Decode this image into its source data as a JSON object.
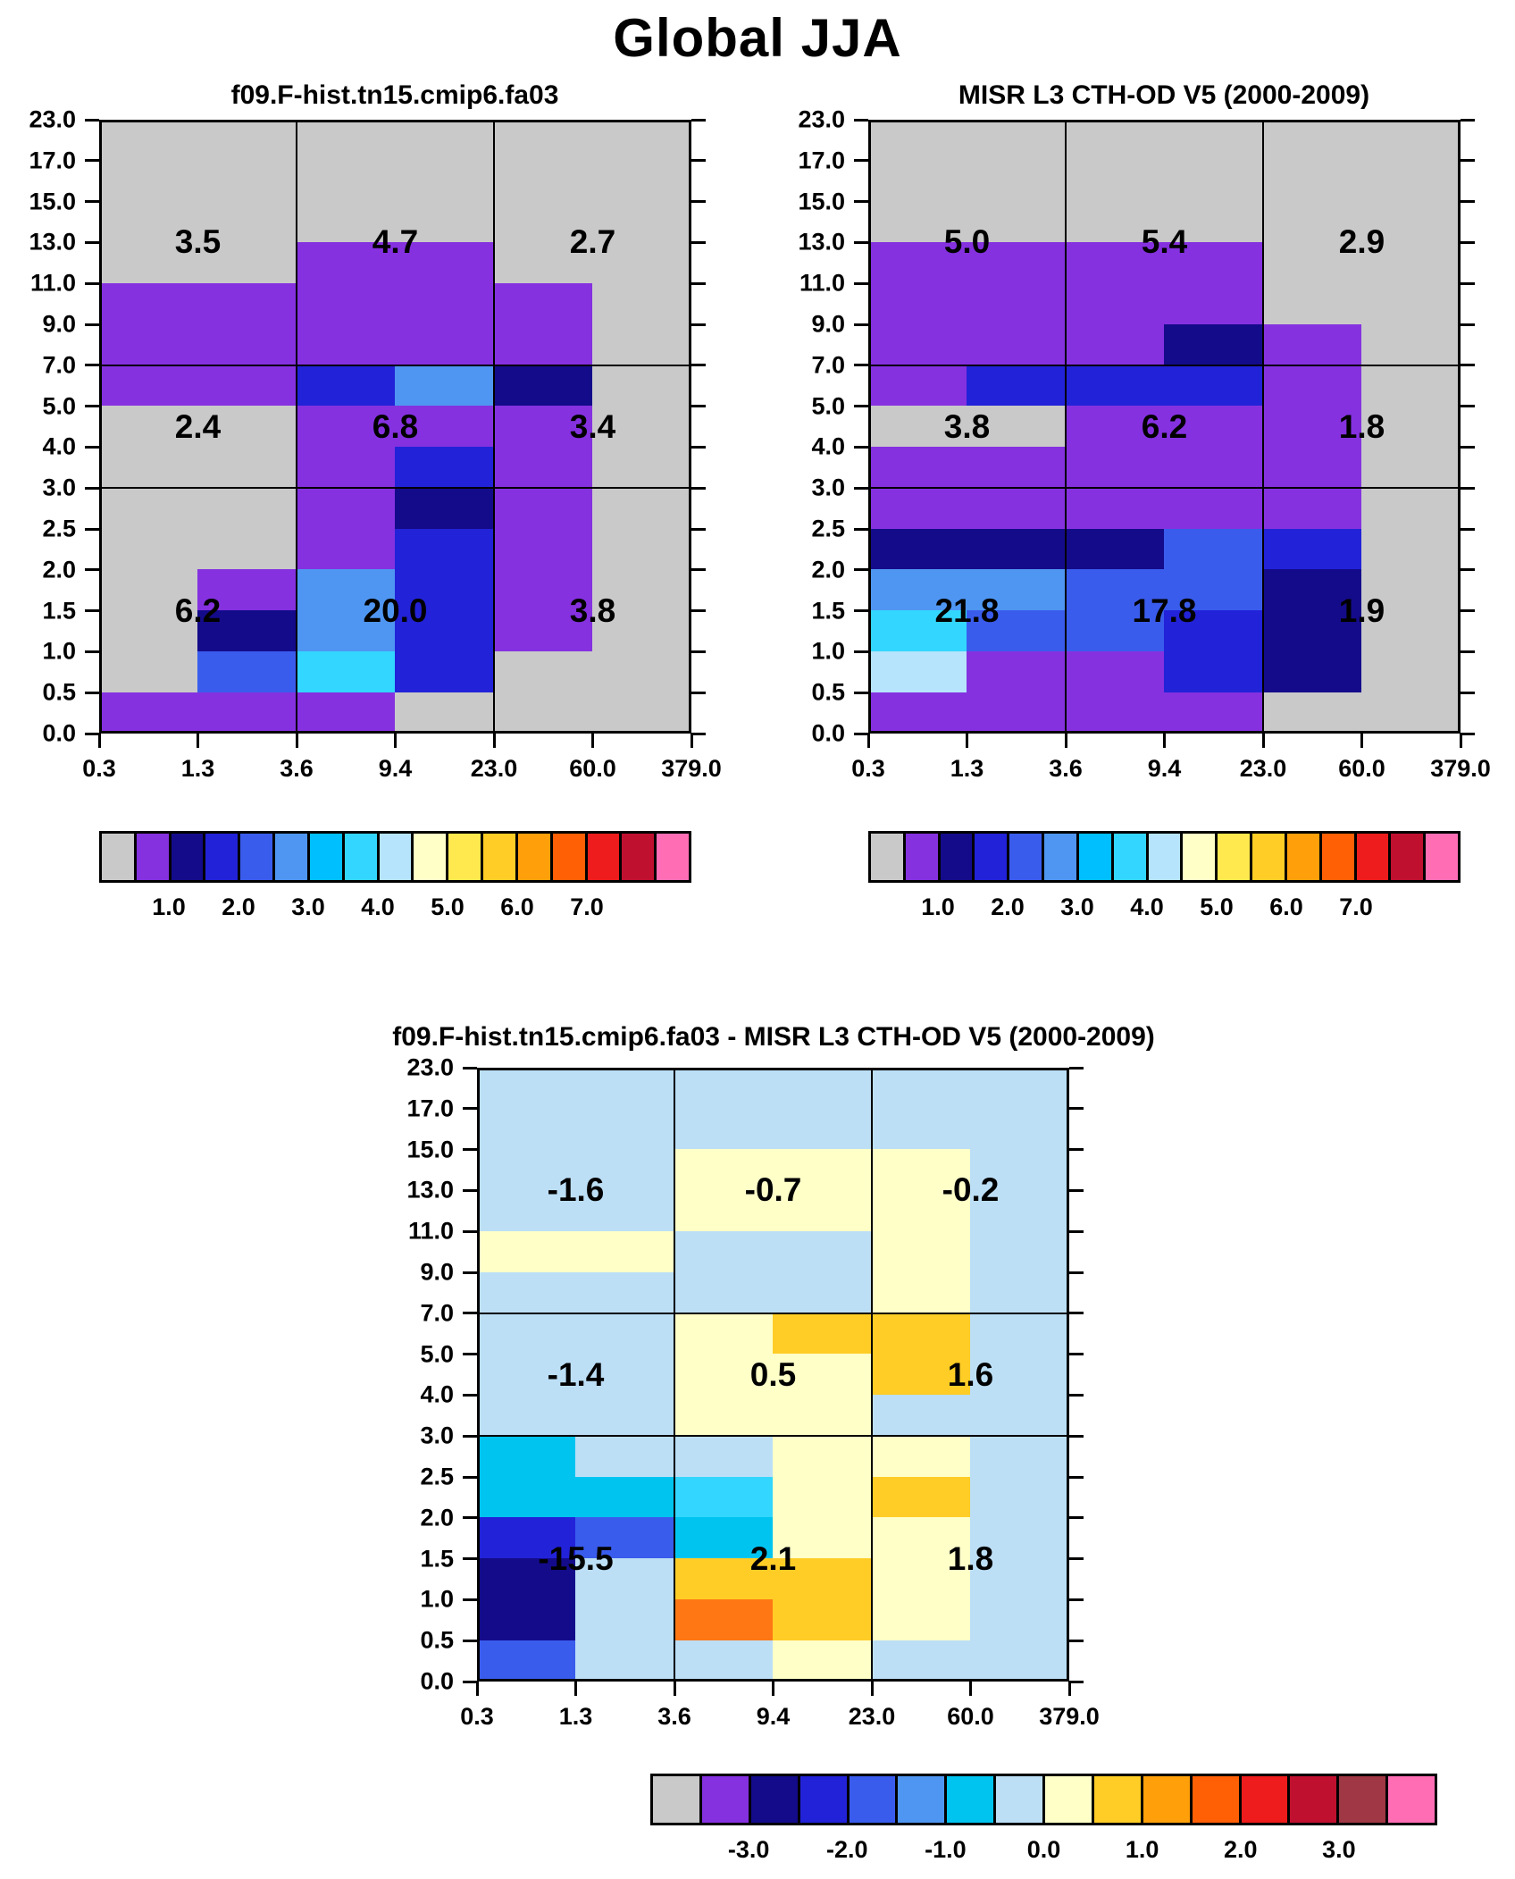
{
  "page_title": "Global JJA",
  "palette": {
    "G": "#c9c9c9",
    "P": "#8531e0",
    "N1": "#140b8a",
    "N2": "#2222d8",
    "B": "#3a5ced",
    "MB": "#4f96f2",
    "SB": "#00bfff",
    "C": "#33d6ff",
    "MC": "#00c4f0",
    "PB": "#b6e4fc",
    "LB": "#bcdff6",
    "PY": "#ffffc8",
    "Y": "#ffe94e",
    "GD": "#ffcd26",
    "AM": "#ffa00a",
    "OR": "#ff7714",
    "RD": "#ee1c1c",
    "DR": "#c01030",
    "MR": "#a03744",
    "PK": "#ff6eb4"
  },
  "axes": {
    "x_ticks": [
      "0.3",
      "1.3",
      "3.6",
      "9.4",
      "23.0",
      "60.0",
      "379.0"
    ],
    "y_ticks": [
      "23.0",
      "17.0",
      "15.0",
      "13.0",
      "11.0",
      "9.0",
      "7.0",
      "5.0",
      "4.0",
      "3.0",
      "2.5",
      "2.0",
      "1.5",
      "1.0",
      "0.5",
      "0.0"
    ]
  },
  "colorbar_top": {
    "colors": [
      "#c9c9c9",
      "#8531e0",
      "#140b8a",
      "#2222d8",
      "#3a5ced",
      "#4f96f2",
      "#00bfff",
      "#33d6ff",
      "#b6e4fc",
      "#ffffc8",
      "#ffe94e",
      "#ffcd26",
      "#ffa00a",
      "#ff5f05",
      "#ee1c1c",
      "#c01030",
      "#ff6eb4"
    ],
    "labels": [
      "1.0",
      "2.0",
      "3.0",
      "4.0",
      "5.0",
      "6.0",
      "7.0"
    ]
  },
  "colorbar_diff": {
    "colors": [
      "#c9c9c9",
      "#8531e0",
      "#140b8a",
      "#2222d8",
      "#3a5ced",
      "#4f96f2",
      "#00c4f0",
      "#bcdff6",
      "#ffffc8",
      "#ffcd26",
      "#ffa00a",
      "#ff5f05",
      "#ee1c1c",
      "#c01030",
      "#a03744",
      "#ff6eb4"
    ],
    "labels": [
      "-3.0",
      "-2.0",
      "-1.0",
      "0.0",
      "1.0",
      "2.0",
      "3.0"
    ]
  },
  "chart_data": [
    {
      "type": "heatmap",
      "title": "f09.F-hist.tn15.cmip6.fa03",
      "block_values": [
        [
          "3.5",
          "4.7",
          "2.7"
        ],
        [
          "2.4",
          "6.8",
          "3.4"
        ],
        [
          "6.2",
          "20.0",
          "3.8"
        ]
      ],
      "grid_colors": [
        [
          "G",
          "G",
          "G",
          "G",
          "G",
          "G"
        ],
        [
          "G",
          "G",
          "G",
          "G",
          "G",
          "G"
        ],
        [
          "G",
          "G",
          "G",
          "G",
          "G",
          "G"
        ],
        [
          "G",
          "G",
          "P",
          "P",
          "G",
          "G"
        ],
        [
          "P",
          "P",
          "P",
          "P",
          "P",
          "G"
        ],
        [
          "P",
          "P",
          "P",
          "P",
          "P",
          "G"
        ],
        [
          "P",
          "P",
          "N2",
          "MB",
          "N1",
          "G"
        ],
        [
          "G",
          "G",
          "P",
          "P",
          "P",
          "G"
        ],
        [
          "G",
          "G",
          "P",
          "N2",
          "P",
          "G"
        ],
        [
          "G",
          "G",
          "P",
          "N1",
          "P",
          "G"
        ],
        [
          "G",
          "G",
          "P",
          "N2",
          "P",
          "G"
        ],
        [
          "G",
          "P",
          "MB",
          "N2",
          "P",
          "G"
        ],
        [
          "G",
          "N1",
          "MB",
          "N2",
          "P",
          "G"
        ],
        [
          "G",
          "B",
          "C",
          "N2",
          "G",
          "G"
        ],
        [
          "P",
          "P",
          "P",
          "G",
          "G",
          "G"
        ]
      ]
    },
    {
      "type": "heatmap",
      "title": "MISR L3 CTH-OD V5 (2000-2009)",
      "block_values": [
        [
          "5.0",
          "5.4",
          "2.9"
        ],
        [
          "3.8",
          "6.2",
          "1.8"
        ],
        [
          "21.8",
          "17.8",
          "1.9"
        ]
      ],
      "grid_colors": [
        [
          "G",
          "G",
          "G",
          "G",
          "G",
          "G"
        ],
        [
          "G",
          "G",
          "G",
          "G",
          "G",
          "G"
        ],
        [
          "G",
          "G",
          "G",
          "G",
          "G",
          "G"
        ],
        [
          "P",
          "P",
          "P",
          "P",
          "G",
          "G"
        ],
        [
          "P",
          "P",
          "P",
          "P",
          "G",
          "G"
        ],
        [
          "P",
          "P",
          "P",
          "N1",
          "P",
          "G"
        ],
        [
          "P",
          "N2",
          "N2",
          "N2",
          "P",
          "G"
        ],
        [
          "G",
          "G",
          "P",
          "P",
          "P",
          "G"
        ],
        [
          "P",
          "P",
          "P",
          "P",
          "P",
          "G"
        ],
        [
          "P",
          "P",
          "P",
          "P",
          "P",
          "G"
        ],
        [
          "N1",
          "N1",
          "N1",
          "B",
          "N2",
          "G"
        ],
        [
          "MB",
          "MB",
          "B",
          "B",
          "N1",
          "G"
        ],
        [
          "C",
          "B",
          "B",
          "N2",
          "N1",
          "G"
        ],
        [
          "PB",
          "P",
          "P",
          "N2",
          "N1",
          "G"
        ],
        [
          "P",
          "P",
          "P",
          "P",
          "G",
          "G"
        ]
      ]
    },
    {
      "type": "heatmap",
      "title": "f09.F-hist.tn15.cmip6.fa03 - MISR L3 CTH-OD V5 (2000-2009)",
      "block_values": [
        [
          "-1.6",
          "-0.7",
          "-0.2"
        ],
        [
          "-1.4",
          "0.5",
          "1.6"
        ],
        [
          "-15.5",
          "2.1",
          "1.8"
        ]
      ],
      "grid_colors": [
        [
          "LB",
          "LB",
          "LB",
          "LB",
          "LB",
          "LB"
        ],
        [
          "LB",
          "LB",
          "LB",
          "LB",
          "LB",
          "LB"
        ],
        [
          "LB",
          "LB",
          "PY",
          "PY",
          "PY",
          "LB"
        ],
        [
          "LB",
          "LB",
          "PY",
          "PY",
          "PY",
          "LB"
        ],
        [
          "PY",
          "PY",
          "LB",
          "LB",
          "PY",
          "LB"
        ],
        [
          "LB",
          "LB",
          "LB",
          "LB",
          "PY",
          "LB"
        ],
        [
          "LB",
          "LB",
          "PY",
          "GD",
          "GD",
          "LB"
        ],
        [
          "LB",
          "LB",
          "PY",
          "PY",
          "GD",
          "LB"
        ],
        [
          "LB",
          "LB",
          "PY",
          "PY",
          "LB",
          "LB"
        ],
        [
          "MC",
          "LB",
          "LB",
          "PY",
          "PY",
          "LB"
        ],
        [
          "MC",
          "MC",
          "C",
          "PY",
          "GD",
          "LB"
        ],
        [
          "N2",
          "B",
          "MC",
          "PY",
          "PY",
          "LB"
        ],
        [
          "N1",
          "LB",
          "GD",
          "GD",
          "PY",
          "LB"
        ],
        [
          "N1",
          "LB",
          "OR",
          "GD",
          "PY",
          "LB"
        ],
        [
          "B",
          "LB",
          "LB",
          "PY",
          "LB",
          "LB"
        ]
      ]
    }
  ]
}
